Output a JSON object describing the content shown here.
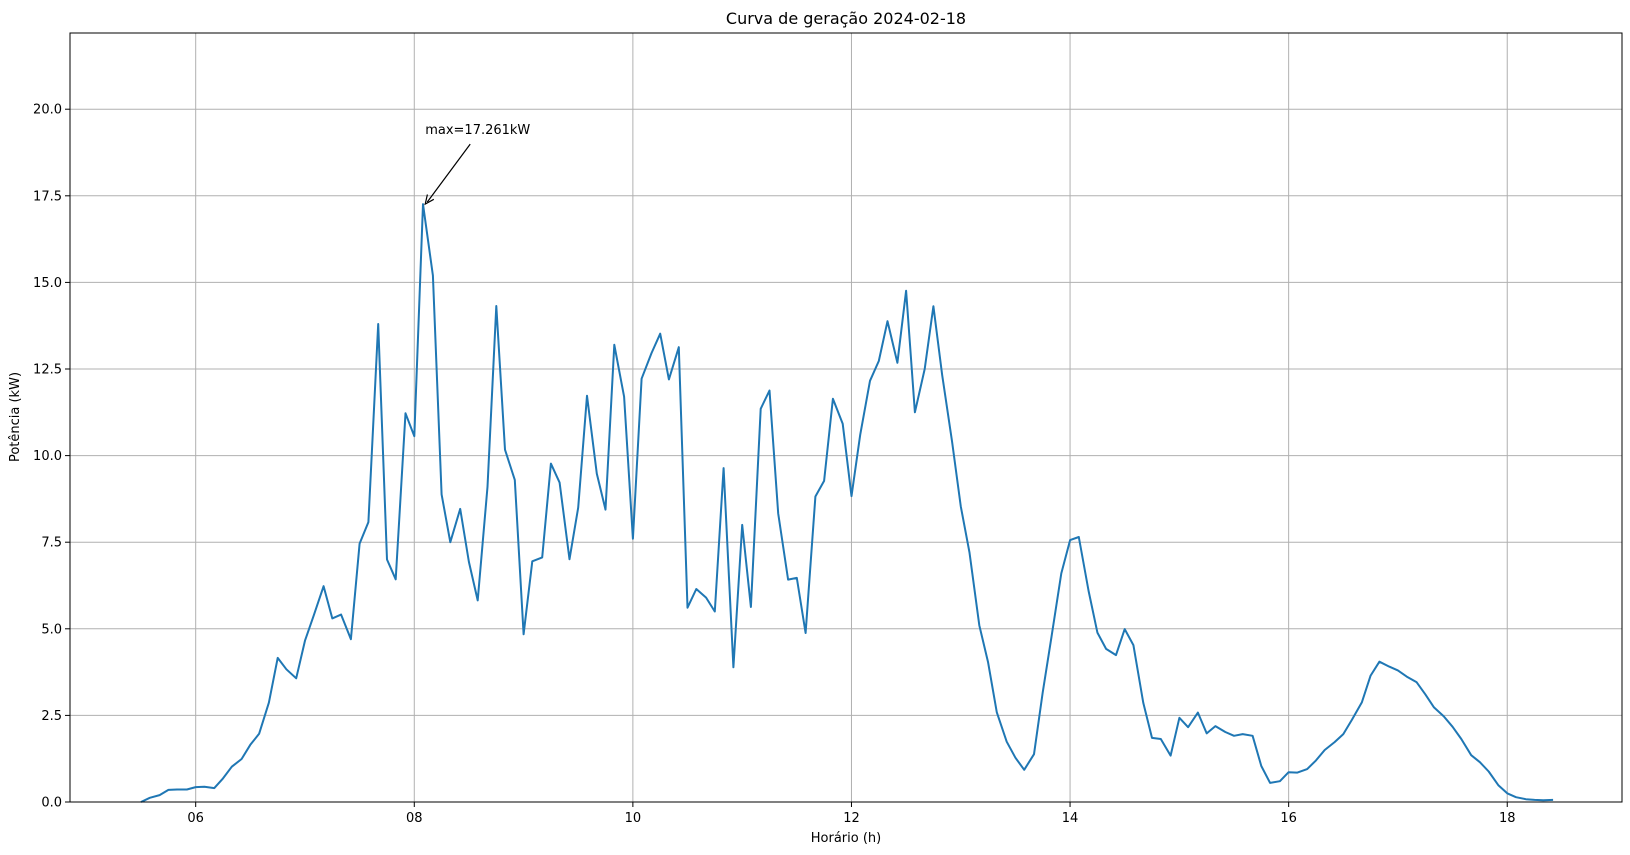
{
  "chart_data": {
    "type": "line",
    "title": "Curva de geração 2024-02-18",
    "xlabel": "Horário (h)",
    "ylabel": "Potência (kW)",
    "xlim": [
      4.85,
      19.05
    ],
    "ylim": [
      0,
      22.2
    ],
    "xticks": [
      6,
      8,
      10,
      12,
      14,
      16,
      18
    ],
    "xtick_labels": [
      "06",
      "08",
      "10",
      "12",
      "14",
      "16",
      "18"
    ],
    "yticks": [
      0,
      2.5,
      5,
      7.5,
      10,
      12.5,
      15,
      17.5,
      20
    ],
    "ytick_labels": [
      "0.0",
      "2.5",
      "5.0",
      "7.5",
      "10.0",
      "12.5",
      "15.0",
      "17.5",
      "20.0"
    ],
    "grid": true,
    "line_color": "#1f77b4",
    "annotation": {
      "text": "max=17.261kW",
      "x": 8.1,
      "y": 17.261
    },
    "series": [
      {
        "x": [
          5.5,
          5.58,
          5.67,
          5.75,
          5.83,
          5.92,
          6.0,
          6.08,
          6.17,
          6.25,
          6.33,
          6.42,
          6.5,
          6.58,
          6.67,
          6.75,
          6.83,
          6.92,
          7.0,
          7.08,
          7.17,
          7.25,
          7.33,
          7.42,
          7.5,
          7.58,
          7.67,
          7.75,
          7.83,
          7.92,
          8.0,
          8.08,
          8.17,
          8.25,
          8.33,
          8.42,
          8.5,
          8.58,
          8.67,
          8.75,
          8.83,
          8.92,
          9.0,
          9.08,
          9.17,
          9.25,
          9.33,
          9.42,
          9.5,
          9.58,
          9.67,
          9.75,
          9.83,
          9.92,
          10.0,
          10.08,
          10.17,
          10.25,
          10.33,
          10.42,
          10.5,
          10.58,
          10.67,
          10.75,
          10.83,
          10.92,
          11.0,
          11.08,
          11.17,
          11.25,
          11.33,
          11.42,
          11.5,
          11.58,
          11.67,
          11.75,
          11.83,
          11.92,
          12.0,
          12.08,
          12.17,
          12.25,
          12.33,
          12.42,
          12.5,
          12.58,
          12.67,
          12.75,
          12.83,
          12.92,
          13.0,
          13.08,
          13.17,
          13.25,
          13.33,
          13.42,
          13.5,
          13.58,
          13.67,
          13.75,
          13.83,
          13.92,
          14.0,
          14.08,
          14.17,
          14.25,
          14.33,
          14.42,
          14.5,
          14.58,
          14.67,
          14.75,
          14.83,
          14.92,
          15.0,
          15.08,
          15.17,
          15.25,
          15.33,
          15.42,
          15.5,
          15.58,
          15.67,
          15.75,
          15.83,
          15.92,
          16.0,
          16.08,
          16.17,
          16.25,
          16.33,
          16.42,
          16.5,
          16.58,
          16.67,
          16.75,
          16.83,
          16.92,
          17.0,
          17.08,
          17.17,
          17.25,
          17.33,
          17.42,
          17.5,
          17.58,
          17.67,
          17.75,
          17.83,
          17.92,
          18.0,
          18.08,
          18.17,
          18.25,
          18.33,
          18.42
        ],
        "values": [
          0.0,
          0.12,
          0.2,
          0.35,
          0.36,
          0.36,
          0.43,
          0.44,
          0.4,
          0.68,
          1.02,
          1.24,
          1.65,
          1.97,
          2.87,
          4.16,
          3.83,
          3.57,
          4.66,
          5.38,
          6.23,
          5.3,
          5.41,
          4.7,
          7.46,
          8.08,
          13.8,
          7.0,
          6.43,
          11.22,
          10.56,
          17.261,
          15.2,
          8.88,
          7.5,
          8.46,
          6.93,
          5.82,
          9.1,
          14.32,
          10.17,
          9.3,
          4.84,
          6.95,
          7.06,
          9.77,
          9.22,
          7.01,
          8.5,
          11.73,
          9.48,
          8.44,
          13.2,
          11.7,
          7.6,
          12.22,
          12.96,
          13.52,
          12.2,
          13.13,
          5.61,
          6.15,
          5.9,
          5.5,
          9.64,
          3.89,
          8.0,
          5.63,
          11.35,
          11.88,
          8.33,
          6.42,
          6.47,
          4.88,
          8.82,
          9.27,
          11.64,
          10.92,
          8.83,
          10.6,
          12.16,
          12.73,
          13.88,
          12.68,
          14.76,
          11.25,
          12.5,
          14.31,
          12.32,
          10.42,
          8.53,
          7.2,
          5.1,
          4.03,
          2.59,
          1.74,
          1.28,
          0.93,
          1.38,
          3.16,
          4.77,
          6.6,
          7.56,
          7.65,
          6.09,
          4.89,
          4.42,
          4.24,
          4.99,
          4.53,
          2.86,
          1.85,
          1.82,
          1.34,
          2.43,
          2.16,
          2.58,
          1.98,
          2.19,
          2.02,
          1.91,
          1.96,
          1.91,
          1.04,
          0.55,
          0.6,
          0.86,
          0.85,
          0.95,
          1.2,
          1.5,
          1.73,
          1.96,
          2.38,
          2.88,
          3.65,
          4.05,
          3.91,
          3.8,
          3.62,
          3.46,
          3.11,
          2.73,
          2.47,
          2.17,
          1.82,
          1.35,
          1.15,
          0.88,
          0.48,
          0.25,
          0.14,
          0.08,
          0.06,
          0.05,
          0.06
        ]
      }
    ]
  }
}
